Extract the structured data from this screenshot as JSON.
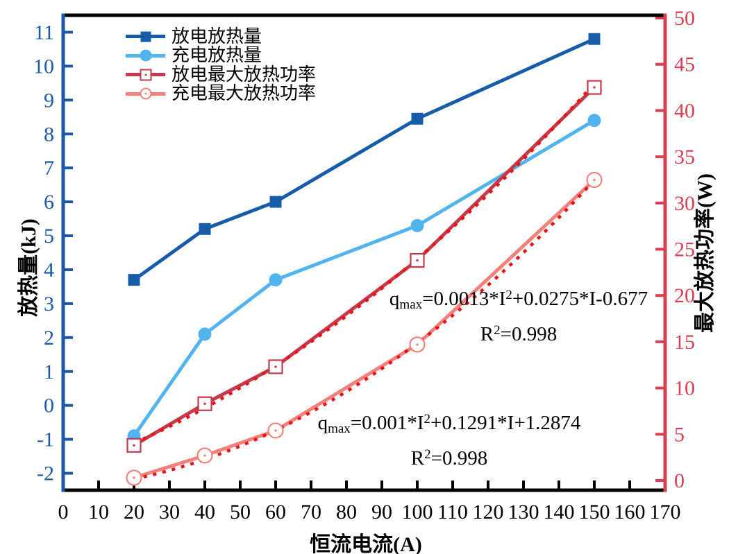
{
  "figure": {
    "background": "#ffffff"
  },
  "axes": {
    "x": {
      "label": "恒流电流(A)",
      "range": [
        0,
        170
      ],
      "ticks": [
        0,
        10,
        20,
        30,
        40,
        50,
        60,
        70,
        80,
        90,
        100,
        110,
        120,
        130,
        140,
        150,
        160,
        170
      ],
      "color": "#000000"
    },
    "left": {
      "label": "放热量(kJ)",
      "range": [
        -2.5,
        11.5
      ],
      "ticks": [
        -2,
        -1,
        0,
        1,
        2,
        3,
        4,
        5,
        6,
        7,
        8,
        9,
        10,
        11
      ],
      "color": "#1B58A8"
    },
    "right": {
      "label": "最大放热功率(W)",
      "range": [
        -1.05,
        50.3
      ],
      "ticks": [
        0,
        5,
        10,
        15,
        20,
        25,
        30,
        35,
        40,
        45,
        50
      ],
      "color": "#D7404F"
    }
  },
  "chart_data": {
    "type": "line",
    "x": [
      20,
      40,
      60,
      100,
      150
    ],
    "series": [
      {
        "name": "放电放热量",
        "axis": "left",
        "marker": "square-filled",
        "color": "#175CA8",
        "values": [
          3.7,
          5.2,
          6.0,
          8.45,
          10.8
        ]
      },
      {
        "name": "充电放热量",
        "axis": "left",
        "marker": "circle-filled",
        "color": "#52B4EE",
        "values": [
          -0.9,
          2.1,
          3.7,
          5.3,
          8.4
        ]
      },
      {
        "name": "放电最大放热功率",
        "axis": "right",
        "marker": "square-open",
        "color": "#C33A4D",
        "values": [
          3.8,
          8.3,
          12.3,
          23.8,
          42.5
        ]
      },
      {
        "name": "充电最大放热功率",
        "axis": "right",
        "marker": "circle-open",
        "color": "#F3817B",
        "values": [
          0.3,
          2.7,
          5.4,
          14.7,
          32.5
        ]
      }
    ],
    "fits": [
      {
        "follows": "放电最大放热功率",
        "axis": "right",
        "a": 0.001,
        "b": 0.1291,
        "c": 1.2874,
        "x_start": 20,
        "x_end": 150,
        "color": "#EE1111"
      },
      {
        "follows": "充电最大放热功率",
        "axis": "right",
        "a": 0.0013,
        "b": 0.0275,
        "c": -0.677,
        "x_start": 20,
        "x_end": 150,
        "color": "#EE1111"
      }
    ],
    "annotations": [
      {
        "text_plain": "qmax=0.0013*I2+0.0275*I-0.677, R2=0.998",
        "lead": "q",
        "lead_sub": "max",
        "eq_pre": "=0.0013*I",
        "eq_sup": "2",
        "eq_post": "+0.0275*I-0.677",
        "r_lead": "R",
        "r_sup": "2",
        "r_eq": "=0.998"
      },
      {
        "text_plain": "qmax=0.001*I2+0.1291*I+1.2874, R2=0.998",
        "lead": "q",
        "lead_sub": "max",
        "eq_pre": "=0.001*I",
        "eq_sup": "2",
        "eq_post": "+0.1291*I+1.2874",
        "r_lead": "R",
        "r_sup": "2",
        "r_eq": "=0.998"
      }
    ],
    "legend_position": "top-left",
    "grid": false
  }
}
